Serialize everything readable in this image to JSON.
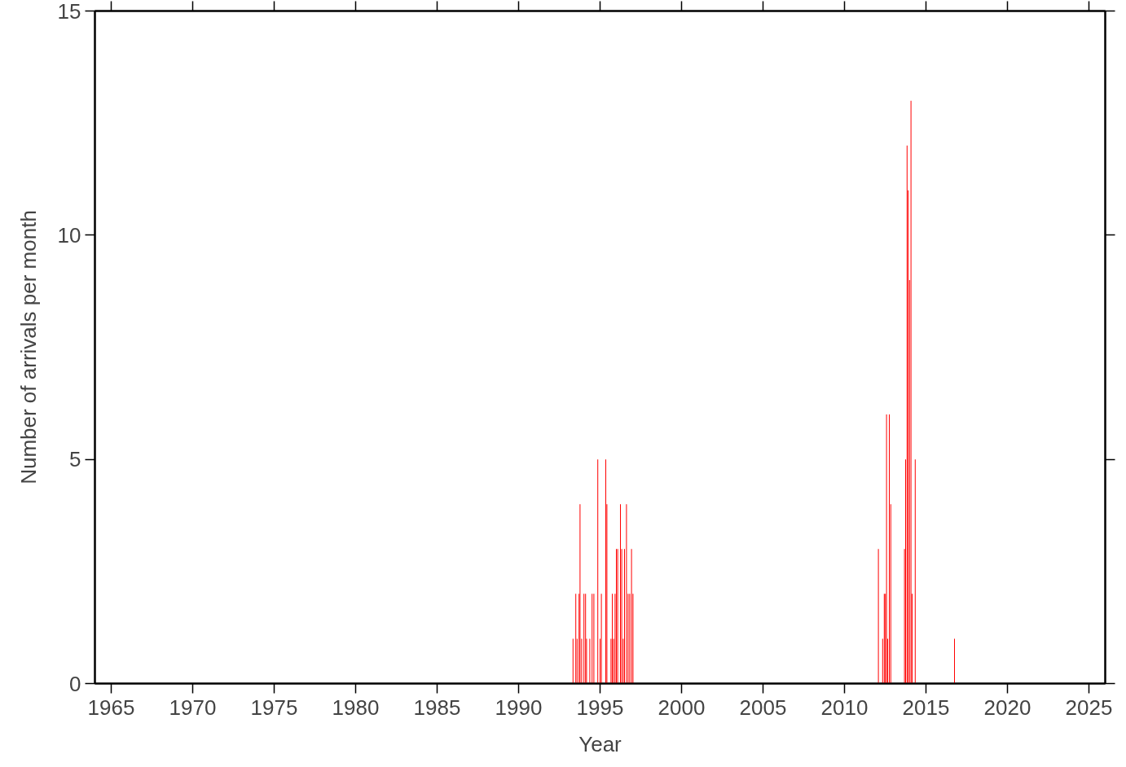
{
  "chart_data": {
    "type": "bar",
    "xlabel": "Year",
    "ylabel": "Number of arrivals per month",
    "x": [
      1993.34,
      1993.51,
      1993.59,
      1993.71,
      1993.77,
      1993.87,
      1994.01,
      1994.11,
      1994.17,
      1994.37,
      1994.51,
      1994.62,
      1994.86,
      1995.0,
      1995.08,
      1995.35,
      1995.42,
      1995.67,
      1995.75,
      1995.83,
      1995.92,
      1996.0,
      1996.08,
      1996.25,
      1996.33,
      1996.42,
      1996.5,
      1996.62,
      1996.72,
      1996.82,
      1996.93,
      1997.02,
      2012.08,
      2012.34,
      2012.44,
      2012.51,
      2012.58,
      2012.65,
      2012.75,
      2012.84,
      2013.68,
      2013.75,
      2013.84,
      2013.91,
      2013.99,
      2014.08,
      2014.15,
      2014.34,
      2016.75
    ],
    "values": [
      1,
      2,
      1,
      2,
      4,
      1,
      2,
      2,
      1,
      1,
      2,
      2,
      5,
      1,
      2,
      5,
      4,
      1,
      2,
      1,
      2,
      3,
      3,
      4,
      3,
      1,
      3,
      4,
      2,
      2,
      3,
      2,
      3,
      1,
      2,
      2,
      6,
      1,
      6,
      4,
      3,
      5,
      12,
      11,
      9,
      13,
      2,
      5,
      1
    ],
    "color": "#ff0000",
    "xlim": [
      1964,
      2026
    ],
    "xticks": [
      1965,
      1970,
      1975,
      1980,
      1985,
      1990,
      1995,
      2000,
      2005,
      2010,
      2015,
      2020,
      2025
    ],
    "ylim": [
      0,
      15
    ],
    "yticks": [
      0,
      5,
      10,
      15
    ],
    "grid": false
  }
}
